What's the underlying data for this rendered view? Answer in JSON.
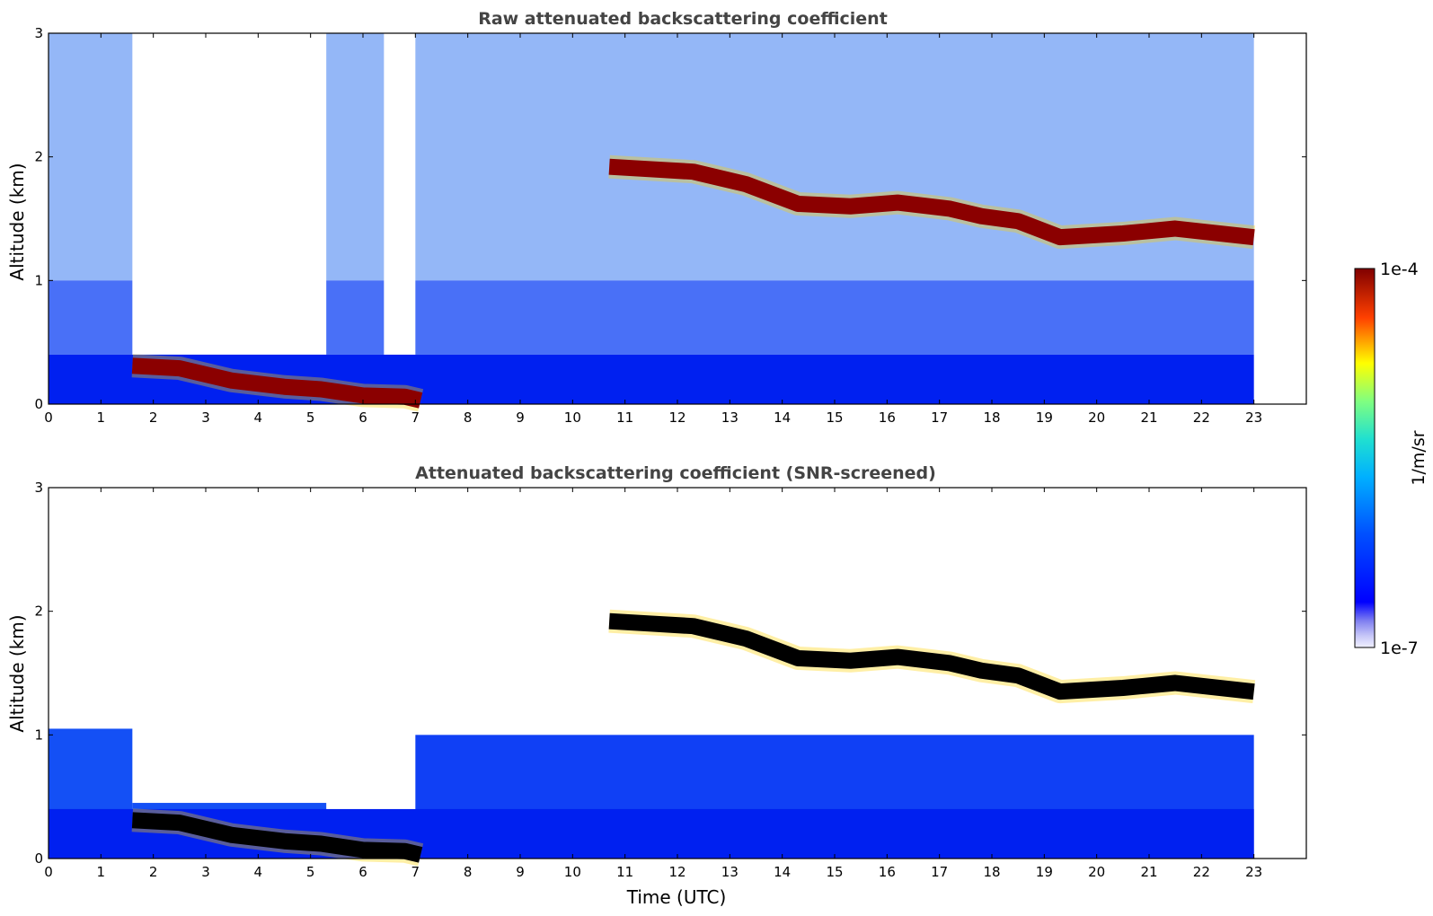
{
  "chart_data": [
    {
      "type": "heatmap",
      "title": "Raw attenuated backscattering coefficient",
      "xlabel": "",
      "ylabel": "Altitude (km)",
      "x_ticks": [
        "0",
        "1",
        "2",
        "3",
        "4",
        "5",
        "6",
        "7",
        "8",
        "9",
        "10",
        "11",
        "12",
        "13",
        "14",
        "15",
        "16",
        "17",
        "18",
        "19",
        "20",
        "21",
        "22",
        "23"
      ],
      "y_ticks": [
        "0",
        "1",
        "2",
        "3"
      ],
      "xlim": [
        0,
        24
      ],
      "ylim": [
        0,
        3
      ],
      "data_end_hour": 23,
      "layers": [
        {
          "feature": "aerosol layer",
          "x": [
            1.6,
            2.5,
            3.5,
            4.5,
            5.2,
            6.0,
            6.8,
            7.1
          ],
          "y": [
            0.31,
            0.29,
            0.19,
            0.14,
            0.12,
            0.07,
            0.06,
            0.03
          ]
        },
        {
          "feature": "cloud base",
          "x": [
            10.7,
            11.5,
            12.3,
            13.3,
            14.3,
            15.3,
            16.2,
            17.2,
            17.8,
            18.5,
            19.3,
            20.5,
            21.5,
            23.0
          ],
          "y": [
            1.92,
            1.9,
            1.88,
            1.78,
            1.62,
            1.6,
            1.63,
            1.58,
            1.52,
            1.48,
            1.35,
            1.38,
            1.42,
            1.35
          ]
        }
      ],
      "colorbar": {
        "label": "1/m/sr",
        "min": "1e-7",
        "max": "1e-4",
        "scale": "log",
        "colormap": "jet"
      }
    },
    {
      "type": "heatmap",
      "title": "Attenuated backscattering coefficient (SNR-screened)",
      "xlabel": "Time (UTC)",
      "ylabel": "Altitude (km)",
      "x_ticks": [
        "0",
        "1",
        "2",
        "3",
        "4",
        "5",
        "6",
        "7",
        "8",
        "9",
        "10",
        "11",
        "12",
        "13",
        "14",
        "15",
        "16",
        "17",
        "18",
        "19",
        "20",
        "21",
        "22",
        "23"
      ],
      "y_ticks": [
        "0",
        "1",
        "2",
        "3"
      ],
      "xlim": [
        0,
        24
      ],
      "ylim": [
        0,
        3
      ],
      "data_end_hour": 23,
      "colorbar": {
        "label": "1/m/sr",
        "min": "1e-7",
        "max": "1e-4",
        "scale": "log",
        "colormap": "jet"
      }
    }
  ],
  "colorbar": {
    "label": "1/m/sr",
    "max_label": "1e-4",
    "min_label": "1e-7"
  }
}
